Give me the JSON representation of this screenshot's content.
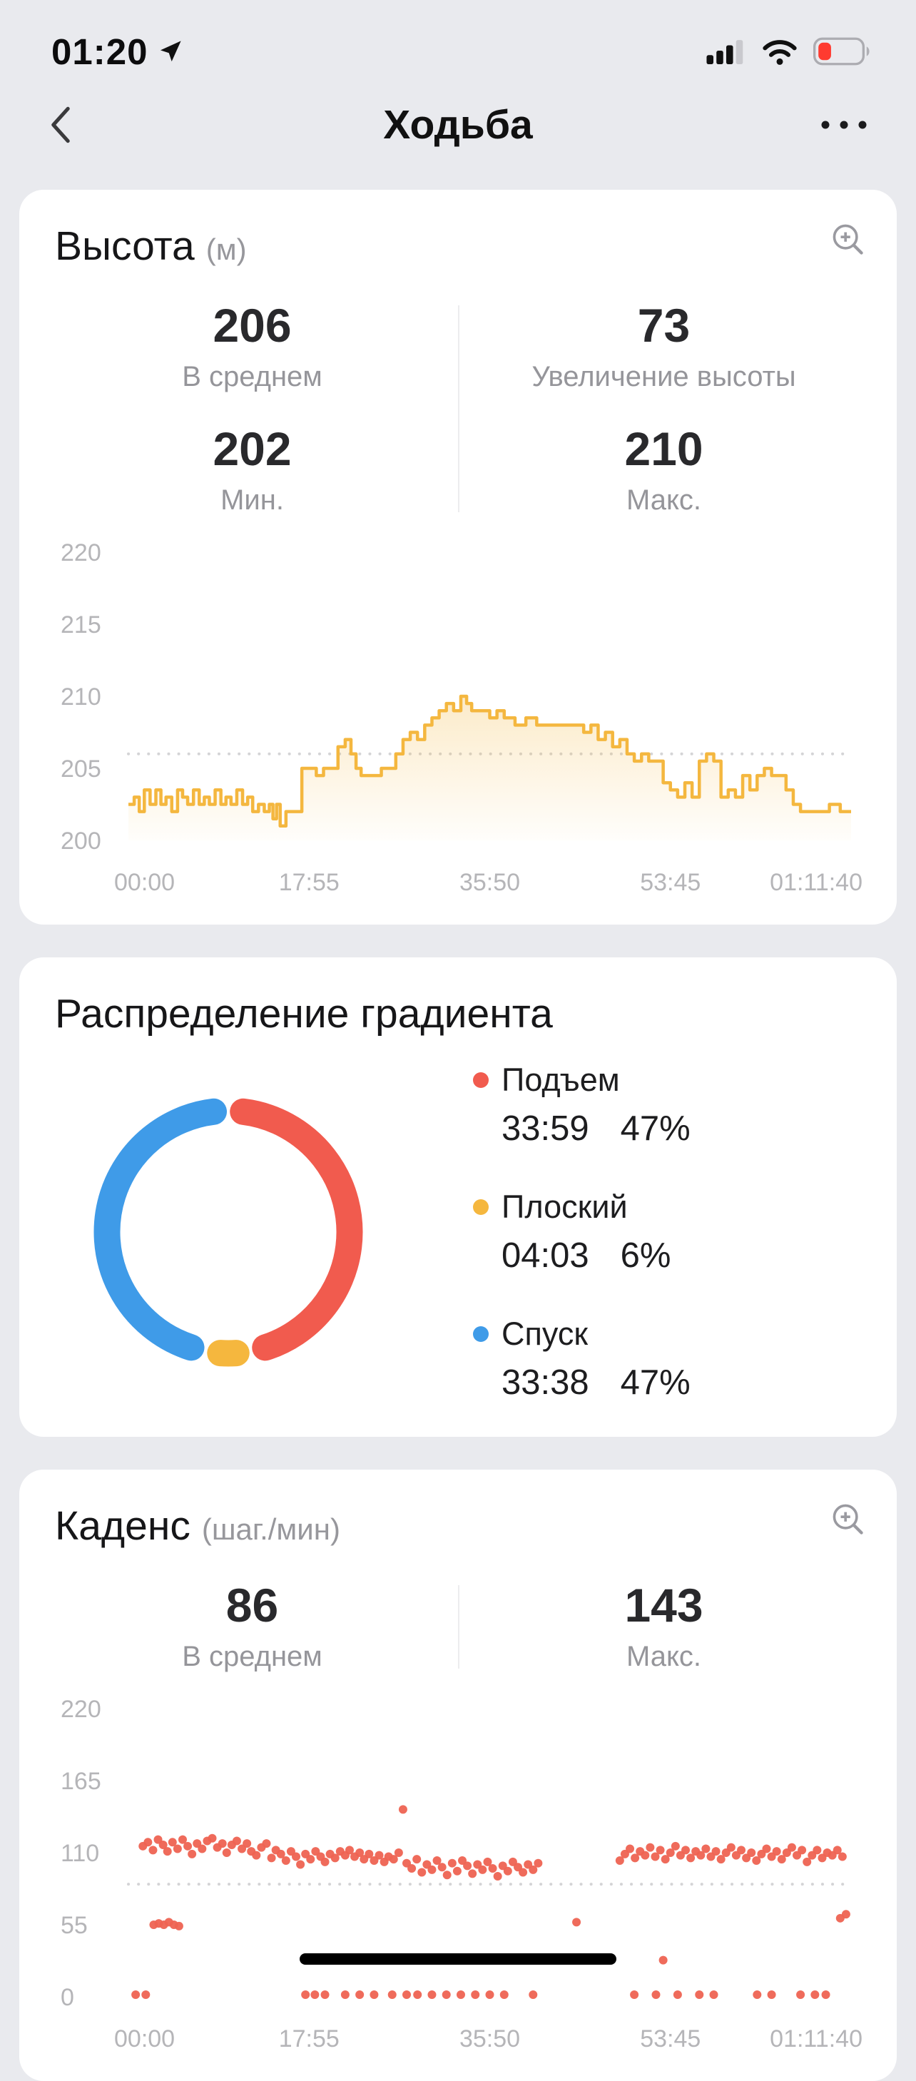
{
  "status_bar": {
    "time": "01:20",
    "battery_level": 0.3,
    "battery_color": "#FF3B30"
  },
  "nav": {
    "title": "Ходьба"
  },
  "cards": {
    "altitude": {
      "title": "Высота",
      "unit": "(м)",
      "stats": [
        {
          "value": "206",
          "label": "В среднем"
        },
        {
          "value": "73",
          "label": "Увеличение высоты"
        },
        {
          "value": "202",
          "label": "Мин."
        },
        {
          "value": "210",
          "label": "Макс."
        }
      ]
    },
    "gradient": {
      "title": "Распределение градиента"
    },
    "cadence": {
      "title": "Каденс",
      "unit": "(шаг./мин)",
      "stats": [
        {
          "value": "86",
          "label": "В среднем"
        },
        {
          "value": "143",
          "label": "Макс."
        }
      ]
    }
  },
  "chart_data": [
    {
      "type": "line",
      "title": "Высота (м)",
      "ylabel": "м",
      "ylim": [
        200,
        220
      ],
      "y_ticks": [
        200,
        205,
        210,
        215,
        220
      ],
      "x_ticks": [
        "00:00",
        "17:55",
        "35:50",
        "53:45",
        "01:11:40"
      ],
      "avg_line": 206,
      "color": "#F4B73F",
      "points": [
        [
          0,
          202.5
        ],
        [
          0.008,
          203
        ],
        [
          0.015,
          202
        ],
        [
          0.022,
          203.5
        ],
        [
          0.03,
          202.5
        ],
        [
          0.038,
          203.5
        ],
        [
          0.045,
          202.5
        ],
        [
          0.052,
          203
        ],
        [
          0.06,
          202
        ],
        [
          0.068,
          203.5
        ],
        [
          0.075,
          203
        ],
        [
          0.082,
          202.5
        ],
        [
          0.09,
          203.5
        ],
        [
          0.098,
          202.5
        ],
        [
          0.105,
          203
        ],
        [
          0.112,
          202.5
        ],
        [
          0.12,
          203.5
        ],
        [
          0.128,
          202.5
        ],
        [
          0.135,
          203
        ],
        [
          0.142,
          202.5
        ],
        [
          0.15,
          203.5
        ],
        [
          0.158,
          202.5
        ],
        [
          0.165,
          203
        ],
        [
          0.172,
          202
        ],
        [
          0.18,
          202.5
        ],
        [
          0.188,
          202
        ],
        [
          0.195,
          202.5
        ],
        [
          0.2,
          201.5
        ],
        [
          0.205,
          202.5
        ],
        [
          0.21,
          201
        ],
        [
          0.218,
          202
        ],
        [
          0.225,
          202
        ],
        [
          0.235,
          202
        ],
        [
          0.24,
          205
        ],
        [
          0.25,
          205
        ],
        [
          0.26,
          204.5
        ],
        [
          0.27,
          205
        ],
        [
          0.28,
          205
        ],
        [
          0.29,
          206.5
        ],
        [
          0.3,
          207
        ],
        [
          0.308,
          206
        ],
        [
          0.315,
          205
        ],
        [
          0.322,
          204.5
        ],
        [
          0.335,
          204.5
        ],
        [
          0.35,
          205
        ],
        [
          0.36,
          205
        ],
        [
          0.37,
          206
        ],
        [
          0.38,
          207
        ],
        [
          0.39,
          207.5
        ],
        [
          0.4,
          207
        ],
        [
          0.41,
          208
        ],
        [
          0.42,
          208.5
        ],
        [
          0.43,
          209
        ],
        [
          0.44,
          209.5
        ],
        [
          0.45,
          209
        ],
        [
          0.46,
          210
        ],
        [
          0.468,
          209.5
        ],
        [
          0.475,
          209
        ],
        [
          0.49,
          209
        ],
        [
          0.5,
          208.5
        ],
        [
          0.51,
          209
        ],
        [
          0.52,
          208.5
        ],
        [
          0.535,
          208
        ],
        [
          0.55,
          208.5
        ],
        [
          0.565,
          208
        ],
        [
          0.58,
          208
        ],
        [
          0.6,
          208
        ],
        [
          0.615,
          208
        ],
        [
          0.63,
          207.5
        ],
        [
          0.64,
          208
        ],
        [
          0.65,
          207
        ],
        [
          0.66,
          207.5
        ],
        [
          0.67,
          206.5
        ],
        [
          0.68,
          207
        ],
        [
          0.69,
          206
        ],
        [
          0.7,
          205.5
        ],
        [
          0.71,
          206
        ],
        [
          0.72,
          205.5
        ],
        [
          0.73,
          205.5
        ],
        [
          0.74,
          204
        ],
        [
          0.75,
          203.5
        ],
        [
          0.76,
          203
        ],
        [
          0.77,
          204
        ],
        [
          0.78,
          203
        ],
        [
          0.79,
          205.5
        ],
        [
          0.8,
          206
        ],
        [
          0.81,
          205.5
        ],
        [
          0.82,
          203
        ],
        [
          0.83,
          203.5
        ],
        [
          0.84,
          203
        ],
        [
          0.85,
          204.5
        ],
        [
          0.86,
          203.5
        ],
        [
          0.87,
          204.5
        ],
        [
          0.88,
          205
        ],
        [
          0.89,
          204.5
        ],
        [
          0.9,
          204.5
        ],
        [
          0.91,
          203.5
        ],
        [
          0.92,
          202.5
        ],
        [
          0.93,
          202
        ],
        [
          0.95,
          202
        ],
        [
          0.97,
          202.5
        ],
        [
          0.985,
          202
        ],
        [
          1,
          202
        ]
      ]
    },
    {
      "type": "donut",
      "title": "Распределение градиента",
      "segments": [
        {
          "label": "Подъем",
          "time": "33:59",
          "pct": 47,
          "pct_label": "47%",
          "color": "#F15B4E"
        },
        {
          "label": "Плоский",
          "time": "04:03",
          "pct": 6,
          "pct_label": "6%",
          "color": "#F5B73E"
        },
        {
          "label": "Спуск",
          "time": "33:38",
          "pct": 47,
          "pct_label": "47%",
          "color": "#3F9BE8"
        }
      ]
    },
    {
      "type": "scatter",
      "title": "Каденс (шаг./мин)",
      "ylabel": "шаг./мин",
      "ylim": [
        0,
        220
      ],
      "y_ticks": [
        0,
        55,
        110,
        165,
        220
      ],
      "x_ticks": [
        "00:00",
        "17:55",
        "35:50",
        "53:45",
        "01:11:40"
      ],
      "avg_line": 86,
      "color": "#EE6352",
      "points": [
        [
          0.02,
          115
        ],
        [
          0.027,
          118
        ],
        [
          0.034,
          112
        ],
        [
          0.041,
          120
        ],
        [
          0.048,
          116
        ],
        [
          0.054,
          111
        ],
        [
          0.061,
          118
        ],
        [
          0.068,
          113
        ],
        [
          0.075,
          120
        ],
        [
          0.082,
          115
        ],
        [
          0.088,
          109
        ],
        [
          0.095,
          117
        ],
        [
          0.102,
          113
        ],
        [
          0.109,
          119
        ],
        [
          0.116,
          121
        ],
        [
          0.123,
          114
        ],
        [
          0.13,
          117
        ],
        [
          0.136,
          110
        ],
        [
          0.143,
          116
        ],
        [
          0.15,
          119
        ],
        [
          0.157,
          113
        ],
        [
          0.164,
          117
        ],
        [
          0.17,
          111
        ],
        [
          0.177,
          108
        ],
        [
          0.184,
          114
        ],
        [
          0.191,
          117
        ],
        [
          0.198,
          106
        ],
        [
          0.204,
          112
        ],
        [
          0.211,
          109
        ],
        [
          0.218,
          104
        ],
        [
          0.225,
          111
        ],
        [
          0.232,
          107
        ],
        [
          0.238,
          101
        ],
        [
          0.245,
          109
        ],
        [
          0.252,
          105
        ],
        [
          0.259,
          111
        ],
        [
          0.266,
          107
        ],
        [
          0.272,
          103
        ],
        [
          0.279,
          109
        ],
        [
          0.286,
          106
        ],
        [
          0.293,
          111
        ],
        [
          0.3,
          108
        ],
        [
          0.306,
          112
        ],
        [
          0.313,
          107
        ],
        [
          0.32,
          110
        ],
        [
          0.326,
          105
        ],
        [
          0.333,
          109
        ],
        [
          0.34,
          104
        ],
        [
          0.347,
          108
        ],
        [
          0.354,
          103
        ],
        [
          0.36,
          107
        ],
        [
          0.367,
          105
        ],
        [
          0.374,
          110
        ],
        [
          0.38,
          143
        ],
        [
          0.385,
          102
        ],
        [
          0.392,
          98
        ],
        [
          0.399,
          105
        ],
        [
          0.406,
          95
        ],
        [
          0.413,
          101
        ],
        [
          0.42,
          97
        ],
        [
          0.427,
          104
        ],
        [
          0.434,
          99
        ],
        [
          0.441,
          93
        ],
        [
          0.448,
          102
        ],
        [
          0.455,
          96
        ],
        [
          0.462,
          104
        ],
        [
          0.469,
          100
        ],
        [
          0.476,
          94
        ],
        [
          0.483,
          101
        ],
        [
          0.49,
          97
        ],
        [
          0.497,
          103
        ],
        [
          0.504,
          98
        ],
        [
          0.511,
          92
        ],
        [
          0.518,
          100
        ],
        [
          0.525,
          96
        ],
        [
          0.532,
          103
        ],
        [
          0.539,
          99
        ],
        [
          0.546,
          95
        ],
        [
          0.553,
          101
        ],
        [
          0.56,
          97
        ],
        [
          0.567,
          102
        ],
        [
          0.68,
          104
        ],
        [
          0.687,
          109
        ],
        [
          0.694,
          113
        ],
        [
          0.701,
          106
        ],
        [
          0.708,
          111
        ],
        [
          0.715,
          108
        ],
        [
          0.722,
          114
        ],
        [
          0.729,
          107
        ],
        [
          0.736,
          112
        ],
        [
          0.743,
          105
        ],
        [
          0.75,
          110
        ],
        [
          0.757,
          115
        ],
        [
          0.764,
          108
        ],
        [
          0.771,
          112
        ],
        [
          0.778,
          106
        ],
        [
          0.785,
          111
        ],
        [
          0.792,
          108
        ],
        [
          0.799,
          113
        ],
        [
          0.806,
          107
        ],
        [
          0.813,
          111
        ],
        [
          0.82,
          105
        ],
        [
          0.827,
          110
        ],
        [
          0.834,
          114
        ],
        [
          0.841,
          108
        ],
        [
          0.848,
          112
        ],
        [
          0.855,
          106
        ],
        [
          0.862,
          110
        ],
        [
          0.869,
          104
        ],
        [
          0.876,
          109
        ],
        [
          0.883,
          113
        ],
        [
          0.89,
          107
        ],
        [
          0.897,
          111
        ],
        [
          0.904,
          105
        ],
        [
          0.911,
          110
        ],
        [
          0.918,
          114
        ],
        [
          0.925,
          108
        ],
        [
          0.932,
          112
        ],
        [
          0.939,
          103
        ],
        [
          0.946,
          108
        ],
        [
          0.953,
          112
        ],
        [
          0.96,
          106
        ],
        [
          0.967,
          110
        ],
        [
          0.974,
          108
        ],
        [
          0.981,
          112
        ],
        [
          0.988,
          107
        ],
        [
          0.035,
          55
        ],
        [
          0.042,
          56
        ],
        [
          0.049,
          55
        ],
        [
          0.056,
          57
        ],
        [
          0.063,
          55
        ],
        [
          0.07,
          54
        ],
        [
          0.62,
          57
        ],
        [
          0.74,
          28
        ],
        [
          0.985,
          60
        ],
        [
          0.993,
          63
        ],
        [
          0.01,
          0
        ],
        [
          0.024,
          0
        ],
        [
          0.245,
          0
        ],
        [
          0.258,
          0
        ],
        [
          0.272,
          0
        ],
        [
          0.3,
          0
        ],
        [
          0.32,
          0
        ],
        [
          0.34,
          0
        ],
        [
          0.365,
          0
        ],
        [
          0.385,
          0
        ],
        [
          0.4,
          0
        ],
        [
          0.42,
          0
        ],
        [
          0.44,
          0
        ],
        [
          0.46,
          0
        ],
        [
          0.48,
          0
        ],
        [
          0.5,
          0
        ],
        [
          0.52,
          0
        ],
        [
          0.56,
          0
        ],
        [
          0.7,
          0
        ],
        [
          0.73,
          0
        ],
        [
          0.76,
          0
        ],
        [
          0.79,
          0
        ],
        [
          0.81,
          0
        ],
        [
          0.87,
          0
        ],
        [
          0.89,
          0
        ],
        [
          0.93,
          0
        ],
        [
          0.95,
          0
        ],
        [
          0.965,
          0
        ]
      ]
    }
  ]
}
